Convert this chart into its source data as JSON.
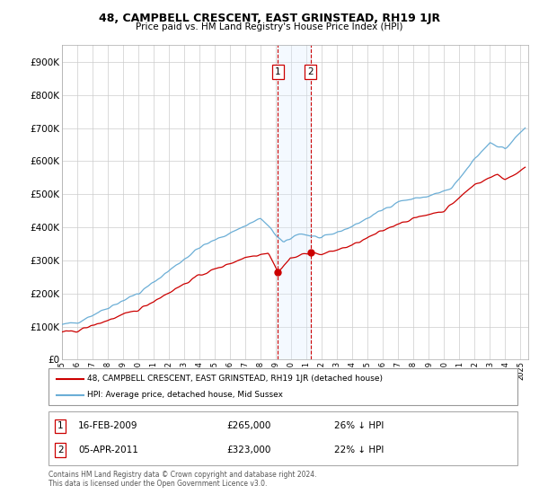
{
  "title": "48, CAMPBELL CRESCENT, EAST GRINSTEAD, RH19 1JR",
  "subtitle": "Price paid vs. HM Land Registry's House Price Index (HPI)",
  "legend_line1": "48, CAMPBELL CRESCENT, EAST GRINSTEAD, RH19 1JR (detached house)",
  "legend_line2": "HPI: Average price, detached house, Mid Sussex",
  "annotation1_label": "1",
  "annotation1_date": "16-FEB-2009",
  "annotation1_price": "£265,000",
  "annotation1_hpi": "26% ↓ HPI",
  "annotation1_year": 2009.12,
  "annotation1_value": 265000,
  "annotation2_label": "2",
  "annotation2_date": "05-APR-2011",
  "annotation2_price": "£323,000",
  "annotation2_hpi": "22% ↓ HPI",
  "annotation2_year": 2011.26,
  "annotation2_value": 323000,
  "footer": "Contains HM Land Registry data © Crown copyright and database right 2024.\nThis data is licensed under the Open Government Licence v3.0.",
  "ylim": [
    0,
    950000
  ],
  "xlim_start": 1995.0,
  "xlim_end": 2025.5,
  "grid_color": "#cccccc",
  "hpi_color": "#6baed6",
  "price_color": "#cc0000",
  "shade_color": "#ddeeff",
  "marker_box_color": "#cc0000",
  "background_color": "#ffffff"
}
